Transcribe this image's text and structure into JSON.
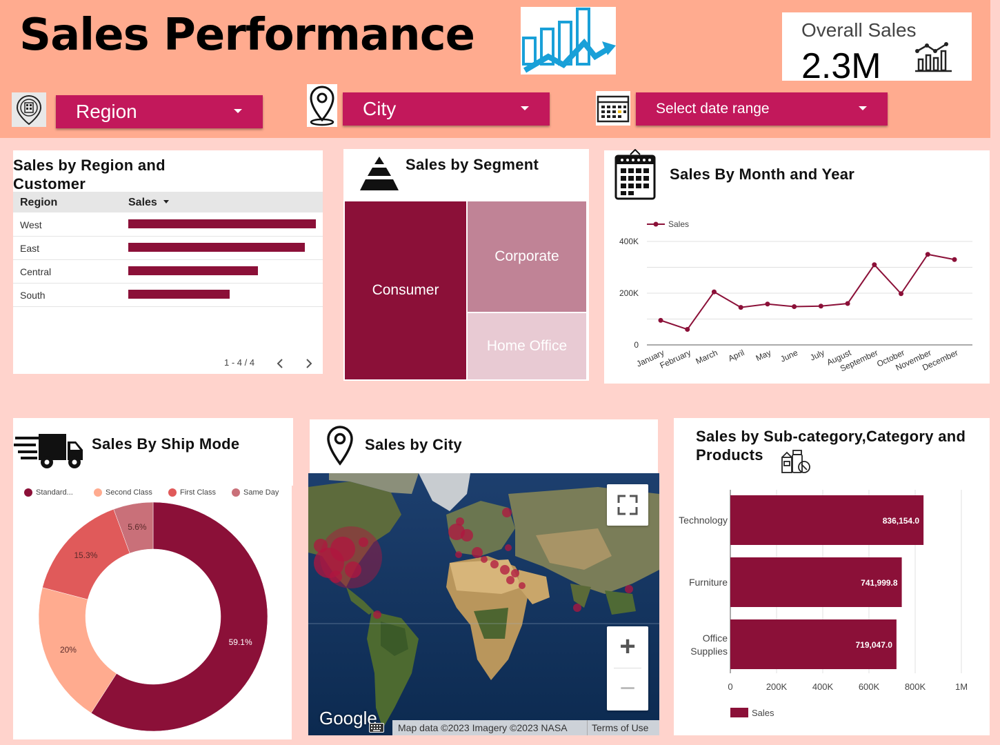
{
  "header": {
    "title": "Sales Performance",
    "overall_label": "Overall Sales",
    "overall_value": "2.3M",
    "filters": {
      "region": "Region",
      "city": "City",
      "date": "Select date range"
    }
  },
  "region_table": {
    "title": "Sales by Region and Customer",
    "col_region": "Region",
    "col_sales": "Sales",
    "rows": [
      {
        "region": "West",
        "share": 1.0
      },
      {
        "region": "East",
        "share": 0.94
      },
      {
        "region": "Central",
        "share": 0.69
      },
      {
        "region": "South",
        "share": 0.54
      }
    ],
    "pager": "1 - 4 / 4"
  },
  "segment": {
    "title": "Sales  by  Segment",
    "items": [
      "Consumer",
      "Corporate",
      "Home Office"
    ]
  },
  "month_chart": {
    "title": "Sales By Month and Year",
    "legend": "Sales",
    "chart_data": {
      "type": "line",
      "x": [
        "January",
        "February",
        "March",
        "April",
        "May",
        "June",
        "July",
        "August",
        "September",
        "October",
        "November",
        "December"
      ],
      "series": [
        {
          "name": "Sales",
          "values": [
            95000,
            60000,
            205000,
            145000,
            158000,
            148000,
            150000,
            160000,
            310000,
            198000,
            350000,
            330000
          ]
        }
      ],
      "yticks": [
        "0",
        "200K",
        "400K"
      ],
      "ylim": [
        0,
        400000
      ],
      "grid": true,
      "legend_position": "top-left"
    }
  },
  "ship_mode": {
    "title": "Sales By Ship Mode",
    "chart_data": {
      "type": "pie",
      "labels": [
        "Standard...",
        "Second Class",
        "First Class",
        "Same Day"
      ],
      "values": [
        59.1,
        20,
        15.3,
        5.6
      ],
      "value_labels": [
        "59.1%",
        "20%",
        "15.3%",
        "5.6%"
      ],
      "colors": [
        "#8b1038",
        "#ffab8f",
        "#e05a5a",
        "#c97079"
      ],
      "donut": true,
      "legend_position": "top"
    }
  },
  "city_map": {
    "title": "Sales by City",
    "google": "Google",
    "attribution": "Map data ©2023 Imagery ©2023 NASA",
    "terms": "Terms of Use",
    "zoom_in": "+",
    "zoom_out": "−"
  },
  "category_chart": {
    "title": "Sales by Sub-category,Category and Products",
    "legend": "Sales",
    "chart_data": {
      "type": "bar",
      "orientation": "horizontal",
      "categories": [
        "Technology",
        "Furniture",
        "Office Supplies"
      ],
      "values": [
        836154.0,
        741999.8,
        719047.0
      ],
      "value_labels": [
        "836,154.0",
        "741,999.8",
        "719,047.0"
      ],
      "xticks": [
        "0",
        "200K",
        "400K",
        "600K",
        "800K",
        "1M"
      ],
      "xlim": [
        0,
        1000000
      ],
      "legend_position": "bottom-left"
    }
  },
  "colors": {
    "header": "#ffab8f",
    "page": "#ffd3cc",
    "accent": "#c2185b",
    "bar": "#8b1038"
  }
}
